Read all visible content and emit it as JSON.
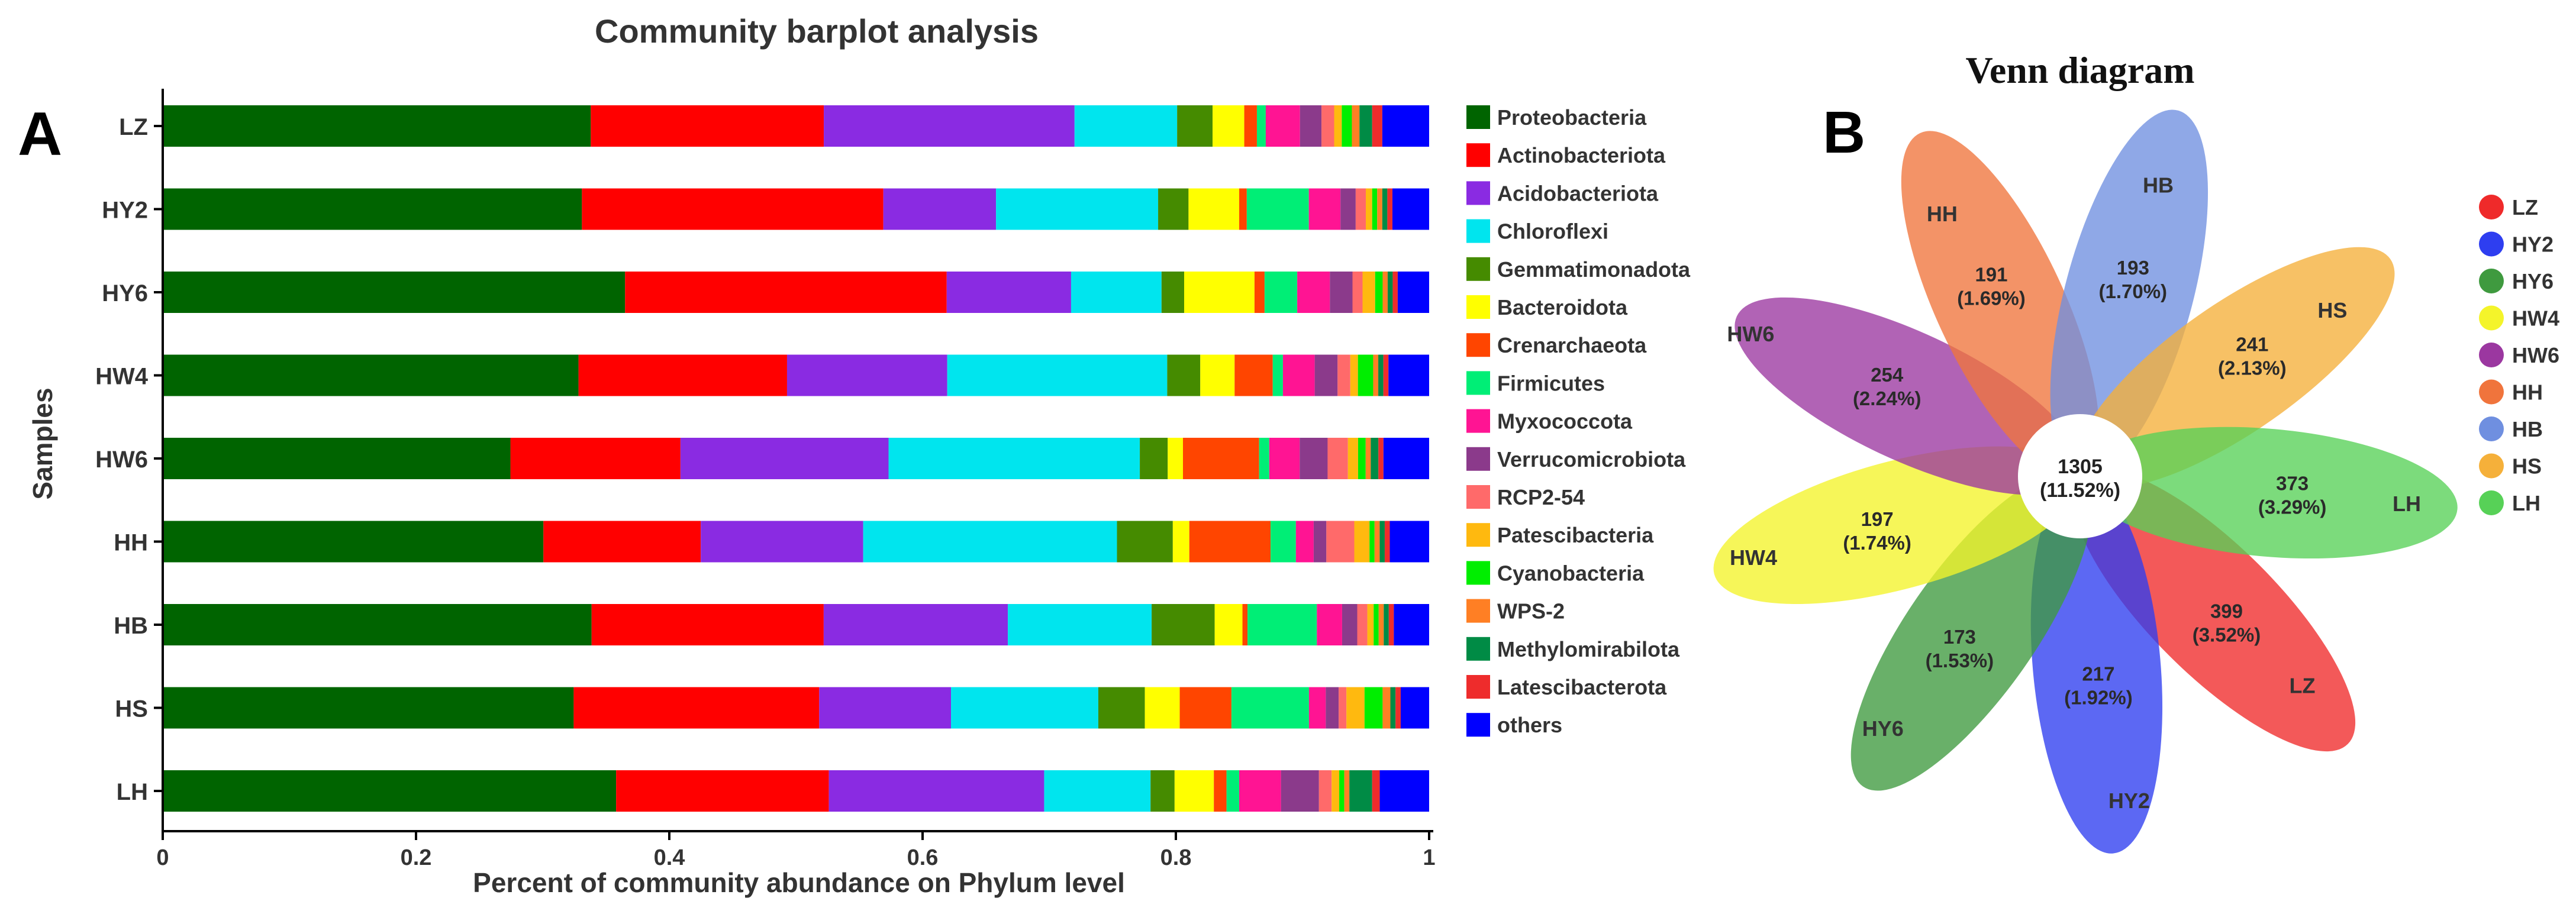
{
  "colors": {
    "taxa": [
      "#006400",
      "#ff0000",
      "#8a2be2",
      "#00e5ee",
      "#458b00",
      "#ffff00",
      "#ff4500",
      "#00ee76",
      "#ff1493",
      "#8b3a8b",
      "#ff6a6a",
      "#ffb90f",
      "#00ee00",
      "#ff7f24",
      "#008b45",
      "#ee2c2c",
      "#0000ff"
    ],
    "venn": [
      "#ef2a2a",
      "#2e3ef0",
      "#3f9a3f",
      "#f4f42a",
      "#9b37a0",
      "#f0743c",
      "#6f8fe0",
      "#f5b03a",
      "#57d157"
    ]
  },
  "chart_data": [
    {
      "panel_label": "A",
      "type": "bar",
      "orientation": "horizontal",
      "stacked": true,
      "title": "Community barplot analysis",
      "xlabel": "Percent of community abundance on Phylum level",
      "ylabel": "Samples",
      "xlim": [
        0,
        1
      ],
      "xticks": [
        0,
        0.2,
        0.4,
        0.6,
        0.8,
        1
      ],
      "xtick_labels": [
        "0",
        "0.2",
        "0.4",
        "0.6",
        "0.8",
        "1"
      ],
      "legend_position": "right",
      "categories": [
        "LZ",
        "HY2",
        "HY6",
        "HW4",
        "HW6",
        "HH",
        "HB",
        "HS",
        "LH"
      ],
      "series": [
        {
          "name": "Proteobacteria",
          "values": [
            0.338,
            0.331,
            0.368,
            0.327,
            0.274,
            0.3,
            0.34,
            0.318,
            0.358
          ]
        },
        {
          "name": "Actinobacteriota",
          "values": [
            0.184,
            0.238,
            0.256,
            0.164,
            0.134,
            0.124,
            0.184,
            0.19,
            0.168
          ]
        },
        {
          "name": "Acidobacteriota",
          "values": [
            0.198,
            0.089,
            0.099,
            0.126,
            0.164,
            0.128,
            0.146,
            0.102,
            0.17
          ]
        },
        {
          "name": "Chloroflexi",
          "values": [
            0.081,
            0.128,
            0.072,
            0.173,
            0.198,
            0.2,
            0.114,
            0.114,
            0.084
          ]
        },
        {
          "name": "Gemmatimonadota",
          "values": [
            0.028,
            0.024,
            0.018,
            0.026,
            0.022,
            0.044,
            0.05,
            0.036,
            0.019
          ]
        },
        {
          "name": "Bacteroidota",
          "values": [
            0.025,
            0.04,
            0.056,
            0.027,
            0.012,
            0.013,
            0.022,
            0.027,
            0.031
          ]
        },
        {
          "name": "Crenarchaeota",
          "values": [
            0.01,
            0.006,
            0.008,
            0.03,
            0.06,
            0.064,
            0.004,
            0.04,
            0.01
          ]
        },
        {
          "name": "Firmicutes",
          "values": [
            0.007,
            0.049,
            0.026,
            0.008,
            0.008,
            0.02,
            0.055,
            0.06,
            0.01
          ]
        },
        {
          "name": "Myxococcota",
          "values": [
            0.027,
            0.025,
            0.026,
            0.025,
            0.024,
            0.014,
            0.02,
            0.013,
            0.033
          ]
        },
        {
          "name": "Verrucomicrobiota",
          "values": [
            0.017,
            0.012,
            0.018,
            0.018,
            0.022,
            0.01,
            0.012,
            0.01,
            0.03
          ]
        },
        {
          "name": "RCP2-54",
          "values": [
            0.01,
            0.008,
            0.008,
            0.01,
            0.016,
            0.022,
            0.008,
            0.006,
            0.01
          ]
        },
        {
          "name": "Patescibacteria",
          "values": [
            0.006,
            0.005,
            0.01,
            0.006,
            0.008,
            0.012,
            0.005,
            0.014,
            0.006
          ]
        },
        {
          "name": "Cyanobacteria",
          "values": [
            0.008,
            0.004,
            0.006,
            0.012,
            0.006,
            0.004,
            0.004,
            0.014,
            0.004
          ]
        },
        {
          "name": "WPS-2",
          "values": [
            0.006,
            0.004,
            0.004,
            0.004,
            0.004,
            0.004,
            0.004,
            0.006,
            0.004
          ]
        },
        {
          "name": "Methylomirabilota",
          "values": [
            0.01,
            0.004,
            0.004,
            0.004,
            0.006,
            0.004,
            0.004,
            0.004,
            0.018
          ]
        },
        {
          "name": "Latescibacterota",
          "values": [
            0.008,
            0.004,
            0.004,
            0.004,
            0.004,
            0.004,
            0.004,
            0.004,
            0.006
          ]
        },
        {
          "name": "others",
          "values": [
            0.037,
            0.029,
            0.025,
            0.032,
            0.036,
            0.031,
            0.028,
            0.022,
            0.039
          ]
        }
      ]
    },
    {
      "panel_label": "B",
      "type": "venn",
      "title": "Venn diagram",
      "core": {
        "count": "1305",
        "percent": "(11.52%)"
      },
      "sets": [
        {
          "name": "LZ",
          "count": "399",
          "percent": "(3.52%)"
        },
        {
          "name": "HY2",
          "count": "217",
          "percent": "(1.92%)"
        },
        {
          "name": "HY6",
          "count": "173",
          "percent": "(1.53%)"
        },
        {
          "name": "HW4",
          "count": "197",
          "percent": "(1.74%)"
        },
        {
          "name": "HW6",
          "count": "254",
          "percent": "(2.24%)"
        },
        {
          "name": "HH",
          "count": "191",
          "percent": "(1.69%)"
        },
        {
          "name": "HB",
          "count": "193",
          "percent": "(1.70%)"
        },
        {
          "name": "HS",
          "count": "241",
          "percent": "(2.13%)"
        },
        {
          "name": "LH",
          "count": "373",
          "percent": "(3.29%)"
        }
      ]
    }
  ]
}
